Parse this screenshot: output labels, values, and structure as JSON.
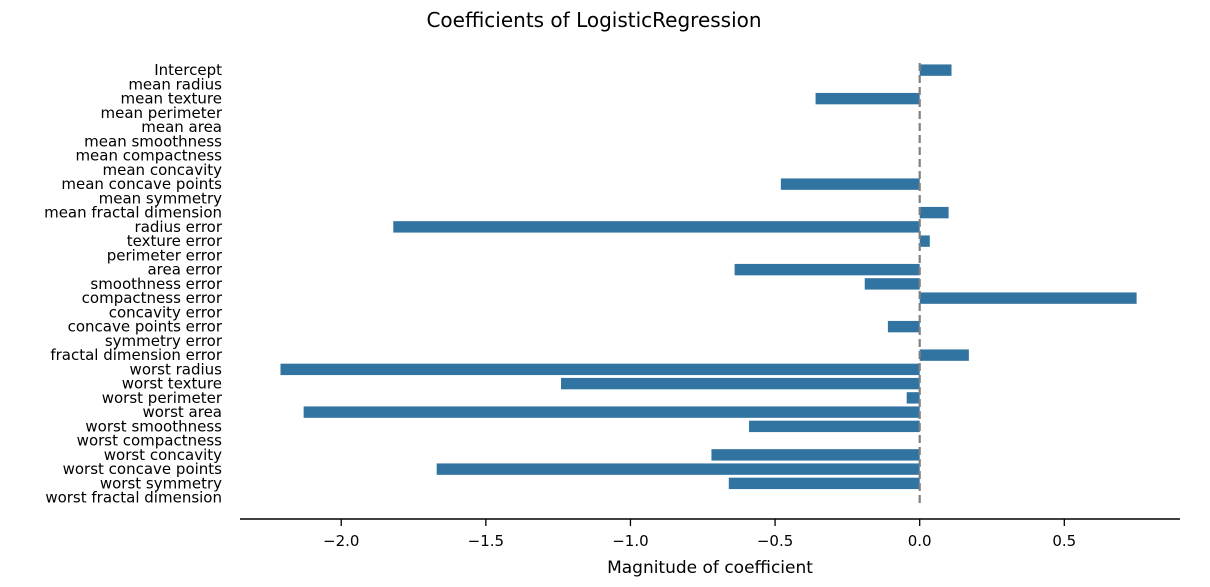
{
  "chart_data": {
    "type": "bar",
    "orientation": "horizontal",
    "title": "Coefficients of LogisticRegression",
    "xlabel": "Magnitude of coefficient",
    "ylabel": "",
    "xlim": [
      -2.35,
      0.9
    ],
    "xticks": [
      -2.0,
      -1.5,
      -1.0,
      -0.5,
      0.0,
      0.5
    ],
    "xtick_labels": [
      "−2.0",
      "−1.5",
      "−1.0",
      "−0.5",
      "0.0",
      "0.5"
    ],
    "bar_color": "#3274a1",
    "zero_line_color": "#808080",
    "grid": false,
    "categories": [
      "Intercept",
      "mean radius",
      "mean texture",
      "mean perimeter",
      "mean area",
      "mean smoothness",
      "mean compactness",
      "mean concavity",
      "mean concave points",
      "mean symmetry",
      "mean fractal dimension",
      "radius error",
      "texture error",
      "perimeter error",
      "area error",
      "smoothness error",
      "compactness error",
      "concavity error",
      "concave points error",
      "symmetry error",
      "fractal dimension error",
      "worst radius",
      "worst texture",
      "worst perimeter",
      "worst area",
      "worst smoothness",
      "worst compactness",
      "worst concavity",
      "worst concave points",
      "worst symmetry",
      "worst fractal dimension"
    ],
    "values": [
      0.11,
      0.0,
      -0.36,
      0.0,
      0.0,
      0.0,
      0.0,
      0.0,
      -0.48,
      0.0,
      0.1,
      -1.82,
      0.035,
      0.0,
      -0.64,
      -0.19,
      0.75,
      0.0,
      -0.11,
      0.0,
      0.17,
      -2.21,
      -1.24,
      -0.045,
      -2.13,
      -0.59,
      0.0,
      -0.72,
      -1.67,
      -0.66,
      0.0
    ]
  }
}
